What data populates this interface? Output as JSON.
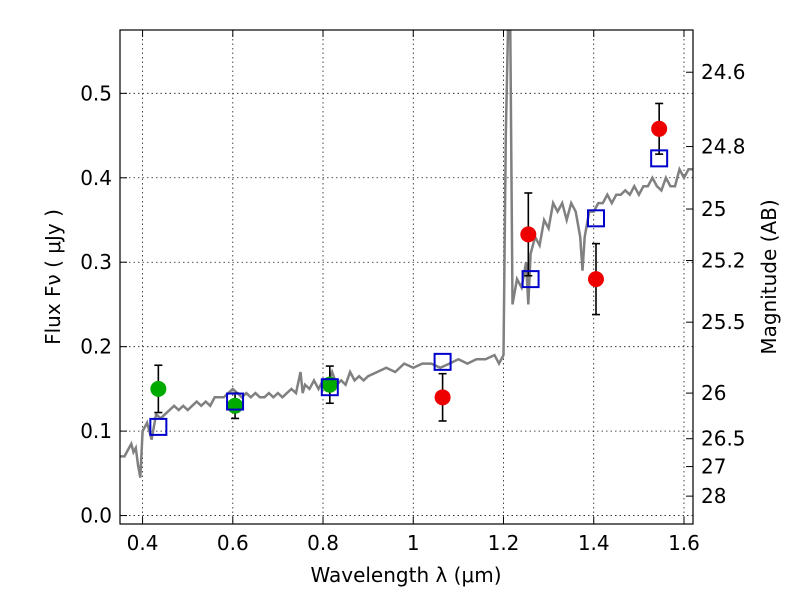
{
  "chart_data": {
    "type": "scatter",
    "title": "",
    "xlabel": "Wavelength  λ (μm)",
    "ylabel": "Flux  Fν  ( μJy )",
    "y2label": "Magnitude (AB)",
    "xlim": [
      0.35,
      1.62
    ],
    "ylim": [
      -0.01,
      0.575
    ],
    "x_ticks": [
      0.4,
      0.6,
      0.8,
      1.0,
      1.2,
      1.4,
      1.6
    ],
    "x_tick_labels": [
      "0.4",
      "0.6",
      "0.8",
      "1",
      "1.2",
      "1.4",
      "1.6"
    ],
    "y_ticks": [
      0.0,
      0.1,
      0.2,
      0.3,
      0.4,
      0.5
    ],
    "y_tick_labels": [
      "0.0",
      "0.1",
      "0.2",
      "0.3",
      "0.4",
      "0.5"
    ],
    "y2_ticks": [
      {
        "label": "24.6",
        "flux": 0.525
      },
      {
        "label": "24.8",
        "flux": 0.437
      },
      {
        "label": "25",
        "flux": 0.363
      },
      {
        "label": "25.2",
        "flux": 0.302
      },
      {
        "label": "25.5",
        "flux": 0.229
      },
      {
        "label": "26",
        "flux": 0.145
      },
      {
        "label": "26.5",
        "flux": 0.091
      },
      {
        "label": "27",
        "flux": 0.058
      },
      {
        "label": "28",
        "flux": 0.023
      }
    ],
    "grid": true,
    "colors": {
      "model": "#808080",
      "green": "#00aa00",
      "red": "#ee0000",
      "square": "#0000cc",
      "errorbar": "#000000"
    },
    "model_spectrum": {
      "name": "model spectrum",
      "x": [
        0.35,
        0.36,
        0.37,
        0.375,
        0.38,
        0.385,
        0.39,
        0.395,
        0.4,
        0.41,
        0.42,
        0.43,
        0.44,
        0.45,
        0.46,
        0.47,
        0.48,
        0.49,
        0.5,
        0.51,
        0.52,
        0.53,
        0.54,
        0.55,
        0.56,
        0.57,
        0.58,
        0.59,
        0.6,
        0.61,
        0.62,
        0.63,
        0.64,
        0.65,
        0.66,
        0.67,
        0.68,
        0.69,
        0.7,
        0.71,
        0.72,
        0.73,
        0.74,
        0.75,
        0.755,
        0.76,
        0.77,
        0.78,
        0.79,
        0.8,
        0.81,
        0.82,
        0.83,
        0.84,
        0.85,
        0.86,
        0.87,
        0.88,
        0.89,
        0.9,
        0.92,
        0.94,
        0.96,
        0.98,
        1.0,
        1.02,
        1.04,
        1.06,
        1.08,
        1.1,
        1.12,
        1.14,
        1.16,
        1.18,
        1.19,
        1.2,
        1.205,
        1.21,
        1.215,
        1.22,
        1.23,
        1.24,
        1.25,
        1.255,
        1.26,
        1.27,
        1.28,
        1.29,
        1.3,
        1.31,
        1.32,
        1.33,
        1.34,
        1.35,
        1.36,
        1.37,
        1.375,
        1.38,
        1.39,
        1.4,
        1.41,
        1.42,
        1.43,
        1.44,
        1.45,
        1.46,
        1.47,
        1.48,
        1.49,
        1.5,
        1.51,
        1.52,
        1.53,
        1.54,
        1.55,
        1.56,
        1.57,
        1.58,
        1.59,
        1.6,
        1.61,
        1.62
      ],
      "y": [
        0.07,
        0.07,
        0.08,
        0.085,
        0.075,
        0.08,
        0.06,
        0.045,
        0.1,
        0.11,
        0.09,
        0.12,
        0.115,
        0.12,
        0.125,
        0.13,
        0.125,
        0.13,
        0.125,
        0.13,
        0.135,
        0.13,
        0.135,
        0.13,
        0.14,
        0.14,
        0.14,
        0.145,
        0.15,
        0.145,
        0.14,
        0.145,
        0.14,
        0.145,
        0.14,
        0.14,
        0.145,
        0.14,
        0.145,
        0.14,
        0.145,
        0.15,
        0.145,
        0.17,
        0.145,
        0.155,
        0.15,
        0.16,
        0.15,
        0.16,
        0.155,
        0.17,
        0.155,
        0.16,
        0.155,
        0.17,
        0.16,
        0.165,
        0.16,
        0.165,
        0.17,
        0.175,
        0.17,
        0.18,
        0.175,
        0.18,
        0.18,
        0.175,
        0.18,
        0.185,
        0.18,
        0.185,
        0.185,
        0.19,
        0.18,
        0.19,
        0.45,
        0.575,
        0.575,
        0.25,
        0.28,
        0.27,
        0.3,
        0.25,
        0.31,
        0.33,
        0.32,
        0.35,
        0.34,
        0.37,
        0.36,
        0.37,
        0.35,
        0.37,
        0.36,
        0.33,
        0.29,
        0.33,
        0.36,
        0.36,
        0.37,
        0.37,
        0.38,
        0.37,
        0.38,
        0.38,
        0.385,
        0.38,
        0.39,
        0.38,
        0.39,
        0.39,
        0.4,
        0.39,
        0.385,
        0.4,
        0.39,
        0.39,
        0.41,
        0.4,
        0.41,
        0.41
      ]
    },
    "series": [
      {
        "name": "green photometry",
        "marker": "circle",
        "points": [
          {
            "x": 0.435,
            "y": 0.15,
            "err": 0.028
          },
          {
            "x": 0.605,
            "y": 0.13,
            "err": 0.015
          },
          {
            "x": 0.815,
            "y": 0.155,
            "err": 0.022
          }
        ]
      },
      {
        "name": "red photometry",
        "marker": "circle",
        "points": [
          {
            "x": 1.065,
            "y": 0.14,
            "err": 0.028
          },
          {
            "x": 1.255,
            "y": 0.333,
            "err": 0.049
          },
          {
            "x": 1.405,
            "y": 0.28,
            "err": 0.042
          },
          {
            "x": 1.545,
            "y": 0.458,
            "err": 0.03
          }
        ]
      },
      {
        "name": "model synthetic photometry",
        "marker": "square",
        "points": [
          {
            "x": 0.435,
            "y": 0.105
          },
          {
            "x": 0.605,
            "y": 0.135
          },
          {
            "x": 0.815,
            "y": 0.152
          },
          {
            "x": 1.065,
            "y": 0.182
          },
          {
            "x": 1.26,
            "y": 0.28
          },
          {
            "x": 1.405,
            "y": 0.352
          },
          {
            "x": 1.545,
            "y": 0.423
          }
        ]
      }
    ]
  }
}
